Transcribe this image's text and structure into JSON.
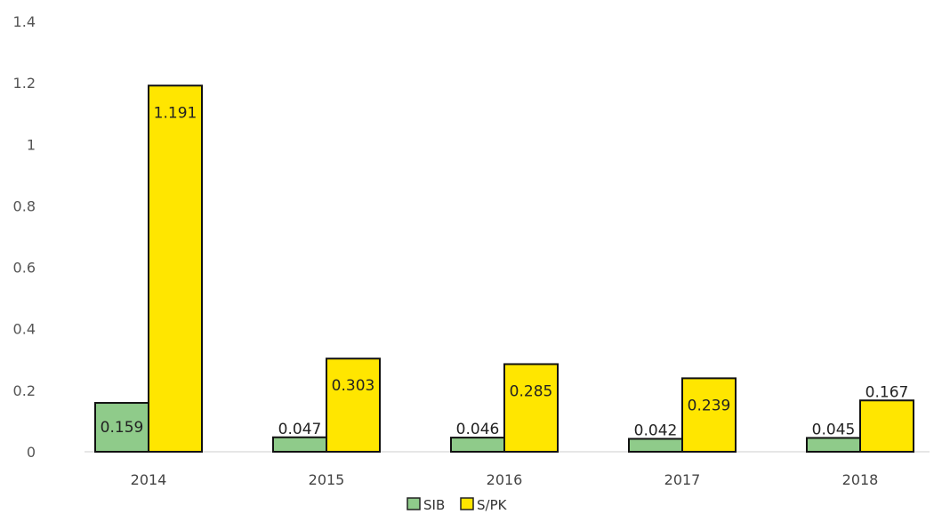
{
  "chart_data": {
    "type": "bar",
    "categories": [
      "2014",
      "2015",
      "2016",
      "2017",
      "2018"
    ],
    "series": [
      {
        "name": "SIB",
        "values": [
          0.159,
          0.047,
          0.046,
          0.042,
          0.045
        ],
        "labels": [
          "0.159",
          "0.047",
          "0.046",
          "0.042",
          "0.045"
        ],
        "color": "#8fcb8a"
      },
      {
        "name": "S/PK",
        "values": [
          1.191,
          0.303,
          0.285,
          0.239,
          0.167
        ],
        "labels": [
          "1.191",
          "0.303",
          "0.285",
          "0.239",
          "0.167"
        ],
        "color": "#ffe600"
      }
    ],
    "yticks": [
      "0",
      "0.2",
      "0.4",
      "0.6",
      "0.8",
      "1",
      "1.2",
      "1.4"
    ],
    "ylim": [
      0,
      1.4
    ],
    "grid": false,
    "legend_position": "bottom-center"
  }
}
